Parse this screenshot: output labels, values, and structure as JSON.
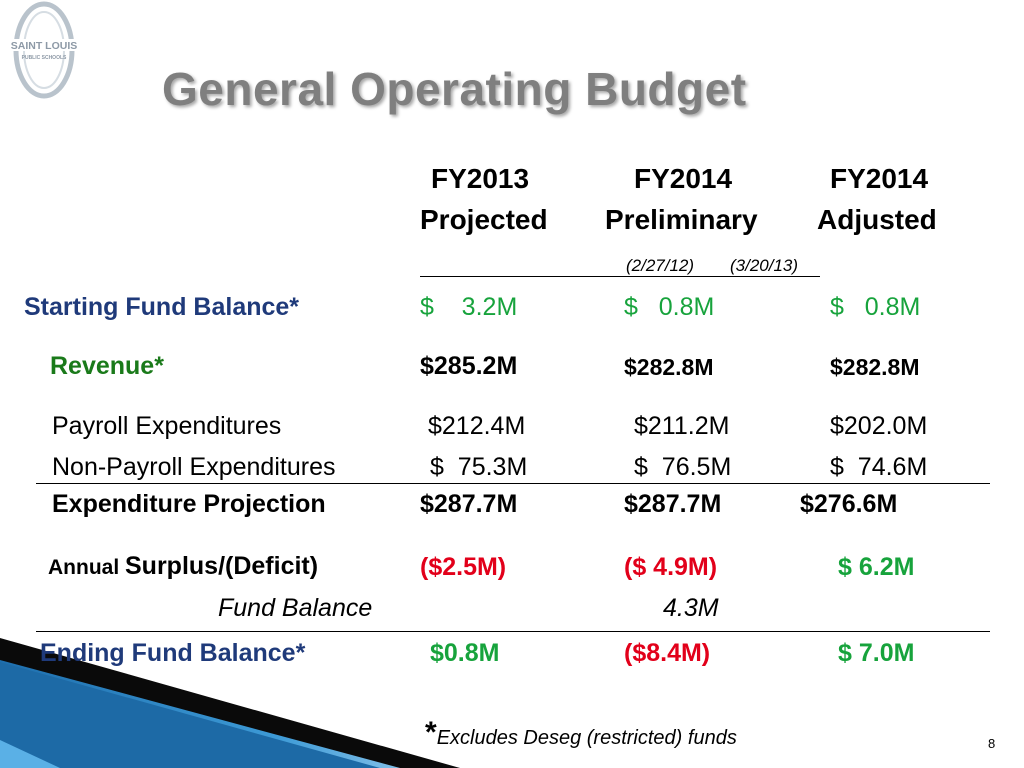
{
  "logo": {
    "line1": "SAINT LOUIS",
    "line2": "PUBLIC SCHOOLS"
  },
  "title": "General Operating Budget",
  "columns": [
    {
      "line1": "FY2013",
      "line2": "Projected"
    },
    {
      "line1": "FY2014",
      "line2": "Preliminary"
    },
    {
      "line1": "FY2014",
      "line2": "Adjusted"
    }
  ],
  "column_dates": [
    "(2/27/12)",
    "(3/20/13)"
  ],
  "rows": {
    "starting": {
      "label": "Starting Fund Balance*",
      "values": [
        "$    3.2M",
        "$   0.8M",
        "$   0.8M"
      ]
    },
    "revenue": {
      "label": "Revenue*",
      "values": [
        "$285.2M",
        "$282.8M",
        "$282.8M"
      ]
    },
    "payroll": {
      "label": "Payroll Expenditures",
      "values": [
        "$212.4M",
        "$211.2M",
        "$202.0M"
      ]
    },
    "nonpayroll": {
      "label": "Non-Payroll Expenditures",
      "values": [
        "$  75.3M",
        "$  76.5M",
        "$  74.6M"
      ]
    },
    "expenditure": {
      "label": "Expenditure Projection",
      "values": [
        "$287.7M",
        "$287.7M",
        "$276.6M"
      ]
    },
    "surplus": {
      "label_small": "Annual ",
      "label_main": "Surplus/(Deficit)",
      "values": [
        "($2.5M)",
        "($ 4.9M)",
        "$ 6.2M"
      ]
    },
    "fund_balance": {
      "label": "Fund Balance",
      "value": "4.3M"
    },
    "ending": {
      "label": "Ending Fund Balance*",
      "values": [
        "$0.8M",
        "($8.4M)",
        "$ 7.0M"
      ]
    }
  },
  "footnote": {
    "star": "*",
    "text": "Excludes Deseg (restricted) funds"
  },
  "page_number": "8",
  "colors": {
    "navy": "#1f3a7a",
    "green": "#1a7a1a",
    "bright_green": "#17a33c",
    "red": "#e2001a",
    "title_gray": "#7f7f7f",
    "swoosh_blue": "#1f7ab8"
  }
}
